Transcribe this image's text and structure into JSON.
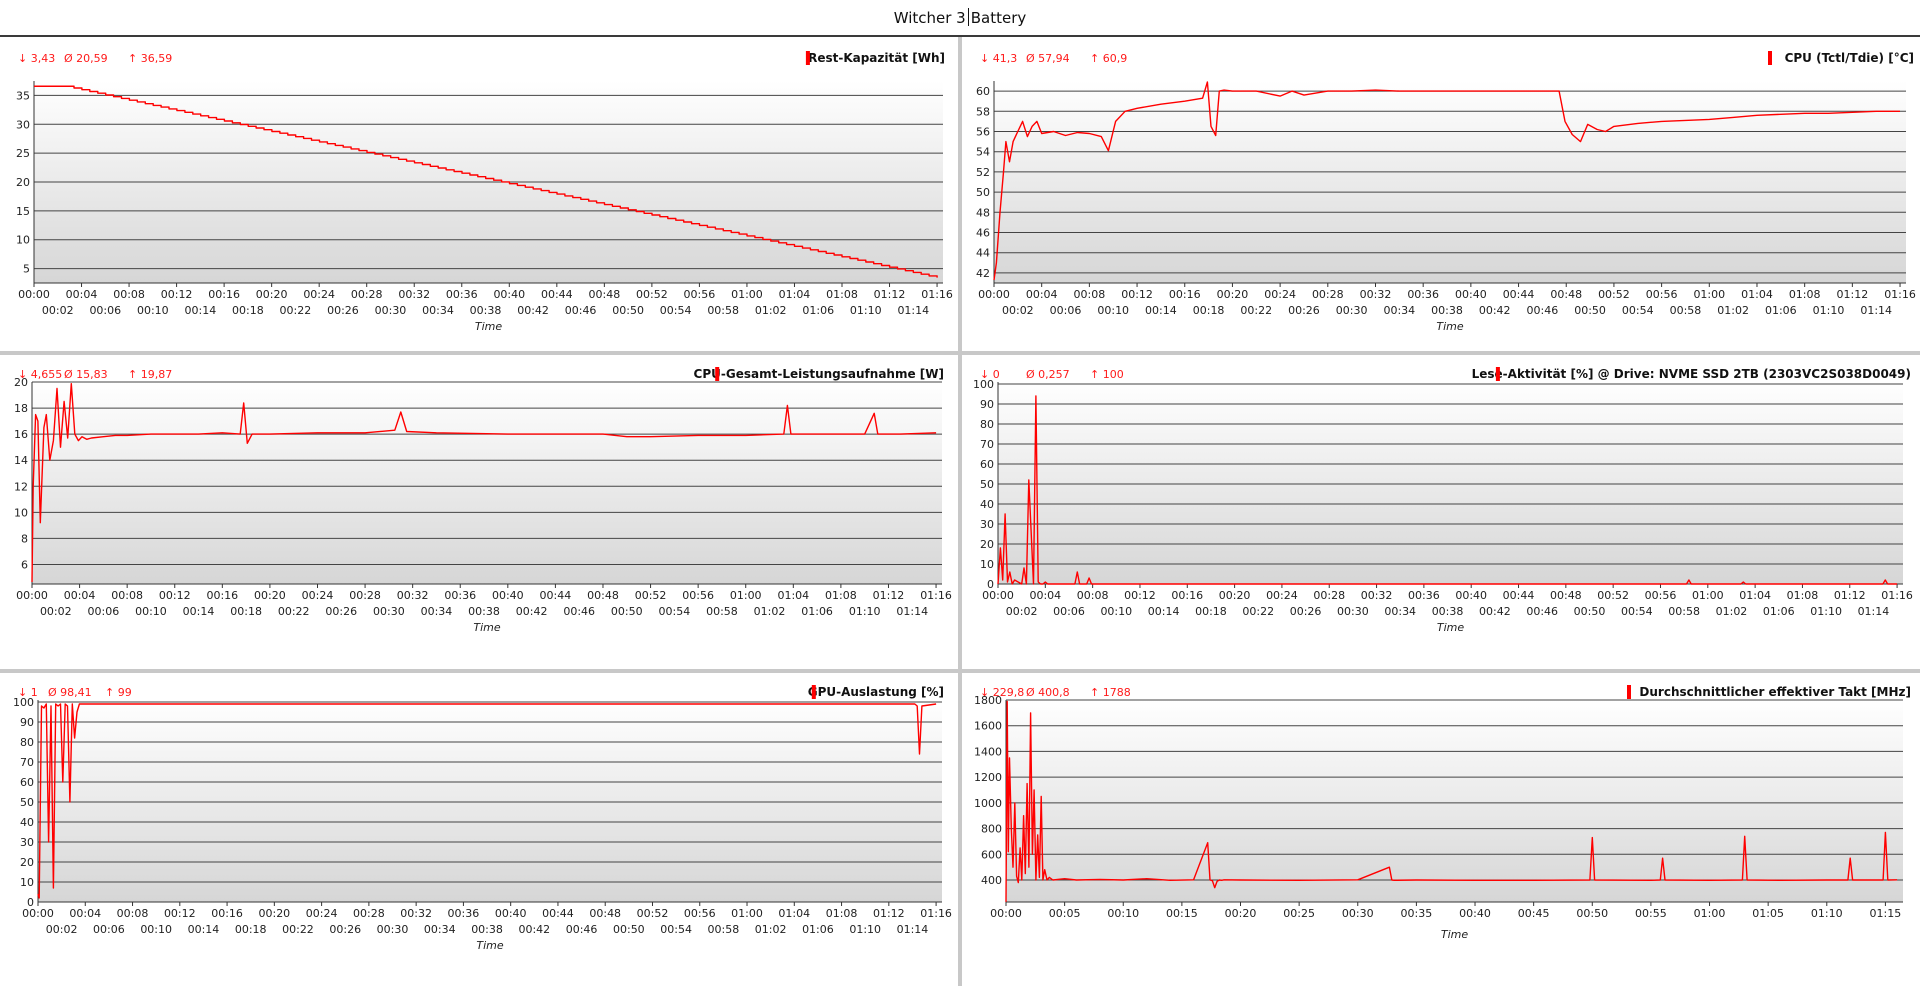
{
  "window": {
    "title_left": "Witcher 3",
    "title_right": "Battery"
  },
  "colors": {
    "series": "#ff0000",
    "panel_divider": "#c8c8c8"
  },
  "stat_icons": {
    "min": "arrow-down-icon",
    "avg": "average-icon",
    "max": "arrow-up-icon"
  },
  "chart_data": [
    {
      "id": "p1",
      "type": "line",
      "title": "Rest-Kapazität [Wh]",
      "stats": {
        "min_label": "↓ 3,43",
        "avg_label": "Ø 20,59",
        "max_label": "↑ 36,59"
      },
      "xlabel": "Time",
      "xlim": [
        0,
        76.5
      ],
      "xticks_top": [
        "00:00",
        "00:04",
        "00:08",
        "00:12",
        "00:16",
        "00:20",
        "00:24",
        "00:28",
        "00:32",
        "00:36",
        "00:40",
        "00:44",
        "00:48",
        "00:52",
        "00:56",
        "01:00",
        "01:04",
        "01:08",
        "01:12",
        "01:16"
      ],
      "xticks_bottom": [
        "00:02",
        "00:06",
        "00:10",
        "00:14",
        "00:18",
        "00:22",
        "00:26",
        "00:30",
        "00:34",
        "00:38",
        "00:42",
        "00:46",
        "00:50",
        "00:54",
        "00:58",
        "01:02",
        "01:06",
        "01:10",
        "01:14"
      ],
      "ylim": [
        2.5,
        37.5
      ],
      "yticks": [
        5,
        10,
        15,
        20,
        25,
        30,
        35
      ],
      "ytick_labels": [
        "5",
        "10",
        "15",
        "20",
        "25",
        "30",
        "35"
      ],
      "x": [
        0,
        2.7,
        76
      ],
      "y": [
        36.59,
        36.59,
        3.43
      ],
      "shape": "step-down"
    },
    {
      "id": "p2",
      "type": "line",
      "title": "CPU (Tctl/Tdie) [°C]",
      "stats": {
        "min_label": "↓ 41,3",
        "avg_label": "Ø 57,94",
        "max_label": "↑ 60,9"
      },
      "xlabel": "Time",
      "xlim": [
        0,
        76.5
      ],
      "xticks_top": [
        "00:00",
        "00:04",
        "00:08",
        "00:12",
        "00:16",
        "00:20",
        "00:24",
        "00:28",
        "00:32",
        "00:36",
        "00:40",
        "00:44",
        "00:48",
        "00:52",
        "00:56",
        "01:00",
        "01:04",
        "01:08",
        "01:12",
        "01:16"
      ],
      "xticks_bottom": [
        "00:02",
        "00:06",
        "00:10",
        "00:14",
        "00:18",
        "00:22",
        "00:26",
        "00:30",
        "00:34",
        "00:38",
        "00:42",
        "00:46",
        "00:50",
        "00:54",
        "00:58",
        "01:02",
        "01:06",
        "01:10",
        "01:14"
      ],
      "ylim": [
        41,
        61
      ],
      "yticks": [
        42,
        44,
        46,
        48,
        50,
        52,
        54,
        56,
        58,
        60
      ],
      "ytick_labels": [
        "42",
        "44",
        "46",
        "48",
        "50",
        "52",
        "54",
        "56",
        "58",
        "60"
      ],
      "x": [
        0,
        0.2,
        0.5,
        0.8,
        1,
        1.3,
        1.6,
        2,
        2.4,
        2.8,
        3.2,
        3.6,
        4,
        5,
        6,
        7,
        8,
        9,
        9.6,
        10.2,
        11,
        12,
        14,
        16,
        17.5,
        17.9,
        18.2,
        18.6,
        18.9,
        19.3,
        20,
        22,
        24,
        25,
        26,
        27,
        28,
        30,
        32,
        34,
        36,
        40,
        44,
        47.4,
        47.9,
        48.5,
        49.2,
        49.8,
        50.6,
        51.3,
        52,
        54,
        56,
        58,
        60,
        62,
        64,
        66,
        68,
        70,
        72,
        74,
        76
      ],
      "y": [
        41.3,
        43,
        48,
        52,
        55,
        53,
        55,
        56,
        57,
        55.5,
        56.5,
        57,
        55.8,
        56,
        55.6,
        55.9,
        55.8,
        55.5,
        54.1,
        57,
        58,
        58.3,
        58.7,
        59,
        59.3,
        60.9,
        56.5,
        55.6,
        60,
        60.1,
        60,
        60,
        59.5,
        60,
        59.6,
        59.8,
        60,
        60,
        60.1,
        60,
        60,
        60,
        60,
        60,
        57,
        55.7,
        55,
        56.7,
        56.2,
        56,
        56.5,
        56.8,
        57,
        57.1,
        57.2,
        57.4,
        57.6,
        57.7,
        57.8,
        57.8,
        57.9,
        58,
        58
      ]
    },
    {
      "id": "p3",
      "type": "line",
      "title": "CPU-Gesamt-Leistungsaufnahme [W]",
      "stats": {
        "min_label": "↓ 4,655",
        "avg_label": "Ø 15,83",
        "max_label": "↑ 19,87"
      },
      "xlabel": "Time",
      "xlim": [
        0,
        76.5
      ],
      "xticks_top": [
        "00:00",
        "00:04",
        "00:08",
        "00:12",
        "00:16",
        "00:20",
        "00:24",
        "00:28",
        "00:32",
        "00:36",
        "00:40",
        "00:44",
        "00:48",
        "00:52",
        "00:56",
        "01:00",
        "01:04",
        "01:08",
        "01:12",
        "01:16"
      ],
      "xticks_bottom": [
        "00:02",
        "00:06",
        "00:10",
        "00:14",
        "00:18",
        "00:22",
        "00:26",
        "00:30",
        "00:34",
        "00:38",
        "00:42",
        "00:46",
        "00:50",
        "00:54",
        "00:58",
        "01:02",
        "01:06",
        "01:10",
        "01:14"
      ],
      "ylim": [
        4.5,
        20
      ],
      "yticks": [
        6,
        8,
        10,
        12,
        14,
        16,
        18,
        20
      ],
      "ytick_labels": [
        "6",
        "8",
        "10",
        "12",
        "14",
        "16",
        "18",
        "20"
      ],
      "x": [
        0,
        0.1,
        0.3,
        0.5,
        0.7,
        1,
        1.2,
        1.5,
        1.8,
        2.1,
        2.4,
        2.7,
        3,
        3.3,
        3.6,
        3.9,
        4.2,
        4.6,
        5,
        6,
        7,
        8,
        10,
        12,
        14,
        16,
        17.5,
        17.8,
        18.1,
        18.5,
        20,
        24,
        28,
        30.5,
        31,
        31.5,
        34,
        40,
        44,
        48,
        50,
        52,
        56,
        60,
        63.2,
        63.5,
        63.8,
        66,
        70,
        70.8,
        71.1,
        71.4,
        73,
        76
      ],
      "y": [
        4.655,
        12,
        17.5,
        17,
        9.2,
        16.5,
        17.5,
        14,
        15.5,
        19.5,
        15,
        18.5,
        15.7,
        19.87,
        16,
        15.5,
        15.8,
        15.6,
        15.7,
        15.8,
        15.9,
        15.9,
        16,
        16,
        16,
        16.1,
        16,
        18.4,
        15.3,
        16,
        16,
        16.1,
        16.1,
        16.3,
        17.7,
        16.2,
        16.1,
        16,
        16,
        16,
        15.8,
        15.8,
        15.9,
        15.9,
        16,
        18.2,
        16,
        16,
        16,
        17.6,
        16,
        16,
        16,
        16.1
      ]
    },
    {
      "id": "p4",
      "type": "line",
      "title": "Lese-Aktivität [%] @ Drive: NVME SSD 2TB (2303VC2S038D0049)",
      "stats": {
        "min_label": "↓ 0",
        "avg_label": "Ø 0,257",
        "max_label": "↑ 100"
      },
      "xlabel": "Time",
      "xlim": [
        0,
        76.5
      ],
      "xticks_top": [
        "00:00",
        "00:04",
        "00:08",
        "00:12",
        "00:16",
        "00:20",
        "00:24",
        "00:28",
        "00:32",
        "00:36",
        "00:40",
        "00:44",
        "00:48",
        "00:52",
        "00:56",
        "01:00",
        "01:04",
        "01:08",
        "01:12",
        "01:16"
      ],
      "xticks_bottom": [
        "00:02",
        "00:06",
        "00:10",
        "00:14",
        "00:18",
        "00:22",
        "00:26",
        "00:30",
        "00:34",
        "00:38",
        "00:42",
        "00:46",
        "00:50",
        "00:54",
        "00:58",
        "01:02",
        "01:06",
        "01:10",
        "01:14"
      ],
      "ylim": [
        0,
        101
      ],
      "yticks": [
        0,
        10,
        20,
        30,
        40,
        50,
        60,
        70,
        80,
        90,
        100
      ],
      "ytick_labels": [
        "0",
        "10",
        "20",
        "30",
        "40",
        "50",
        "60",
        "70",
        "80",
        "90",
        "100"
      ],
      "x": [
        0,
        0.2,
        0.4,
        0.6,
        0.8,
        1,
        1.2,
        1.4,
        2,
        2.2,
        2.4,
        2.6,
        3,
        3.2,
        3.4,
        3.6,
        3.8,
        4,
        4.2,
        5,
        6.5,
        6.7,
        6.9,
        7.5,
        7.7,
        7.9,
        10,
        20,
        30,
        40,
        50,
        58.2,
        58.4,
        58.6,
        60,
        62.8,
        63,
        63.2,
        70,
        74.8,
        75,
        75.2,
        76
      ],
      "y": [
        0,
        18,
        2,
        35,
        1,
        6,
        0,
        2,
        0,
        8,
        0,
        52,
        0,
        94,
        1,
        0,
        0,
        1,
        0,
        0,
        0,
        6,
        0,
        0,
        3,
        0,
        0,
        0,
        0,
        0,
        0,
        0,
        2,
        0,
        0,
        0,
        1,
        0,
        0,
        0,
        2,
        0,
        0
      ]
    },
    {
      "id": "p5",
      "type": "line",
      "title": "GPU-Auslastung [%]",
      "stats": {
        "min_label": "↓ 1",
        "avg_label": "Ø 98,41",
        "max_label": "↑ 99"
      },
      "xlabel": "Time",
      "xlim": [
        0,
        76.5
      ],
      "xticks_top": [
        "00:00",
        "00:04",
        "00:08",
        "00:12",
        "00:16",
        "00:20",
        "00:24",
        "00:28",
        "00:32",
        "00:36",
        "00:40",
        "00:44",
        "00:48",
        "00:52",
        "00:56",
        "01:00",
        "01:04",
        "01:08",
        "01:12",
        "01:16"
      ],
      "xticks_bottom": [
        "00:02",
        "00:06",
        "00:10",
        "00:14",
        "00:18",
        "00:22",
        "00:26",
        "00:30",
        "00:34",
        "00:38",
        "00:42",
        "00:46",
        "00:50",
        "00:54",
        "00:58",
        "01:02",
        "01:06",
        "01:10",
        "01:14"
      ],
      "ylim": [
        0,
        101
      ],
      "yticks": [
        0,
        10,
        20,
        30,
        40,
        50,
        60,
        70,
        80,
        90,
        100
      ],
      "ytick_labels": [
        "0",
        "10",
        "20",
        "30",
        "40",
        "50",
        "60",
        "70",
        "80",
        "90",
        "100"
      ],
      "x": [
        0,
        0.1,
        0.3,
        0.5,
        0.7,
        0.9,
        1.1,
        1.3,
        1.5,
        1.7,
        1.9,
        2.1,
        2.3,
        2.5,
        2.7,
        2.9,
        3.1,
        3.3,
        3.5,
        3.7,
        4,
        6,
        10,
        20,
        30,
        40,
        50,
        60,
        70,
        74.2,
        74.4,
        74.6,
        74.8,
        76
      ],
      "y": [
        4,
        2,
        98,
        97,
        99,
        30,
        98,
        7,
        99,
        98,
        99,
        60,
        99,
        98,
        50,
        99,
        82,
        95,
        99,
        99,
        99,
        99,
        99,
        99,
        99,
        99,
        99,
        99,
        99,
        99,
        98,
        74,
        98,
        99
      ]
    },
    {
      "id": "p6",
      "type": "line",
      "title": "Durchschnittlicher effektiver Takt [MHz]",
      "stats": {
        "min_label": "↓ 229,8",
        "avg_label": "Ø 400,8",
        "max_label": "↑ 1788"
      },
      "xlabel": "Time",
      "xlim": [
        0,
        76.5
      ],
      "xticks_top": [
        "00:00",
        "00:05",
        "00:10",
        "00:15",
        "00:20",
        "00:25",
        "00:30",
        "00:35",
        "00:40",
        "00:45",
        "00:50",
        "00:55",
        "01:00",
        "01:05",
        "01:10",
        "01:15"
      ],
      "xticks_bottom": [],
      "ylim": [
        229,
        1800
      ],
      "yticks": [
        400,
        600,
        800,
        1000,
        1200,
        1400,
        1600,
        1800
      ],
      "ytick_labels": [
        "400",
        "600",
        "800",
        "1000",
        "1200",
        "1400",
        "1600",
        "1800"
      ],
      "x": [
        0,
        0.1,
        0.2,
        0.3,
        0.45,
        0.6,
        0.75,
        0.9,
        1.05,
        1.2,
        1.35,
        1.5,
        1.65,
        1.8,
        1.95,
        2.1,
        2.25,
        2.4,
        2.55,
        2.7,
        2.85,
        3,
        3.15,
        3.3,
        3.5,
        3.7,
        4,
        5,
        6,
        8,
        10,
        12,
        14,
        16,
        17.2,
        17.4,
        17.6,
        17.8,
        18,
        18.2,
        18.4,
        18.6,
        20,
        25,
        30,
        32.7,
        32.9,
        33.1,
        35,
        40,
        45,
        49.8,
        50,
        50.2,
        55,
        55.8,
        56,
        56.2,
        60,
        62.8,
        63,
        63.2,
        66,
        70,
        71.8,
        72,
        72.2,
        74.8,
        75,
        75.2,
        76
      ],
      "y": [
        229.8,
        1788,
        620,
        1350,
        800,
        500,
        1000,
        430,
        380,
        650,
        400,
        900,
        450,
        1150,
        500,
        1700,
        600,
        1100,
        400,
        750,
        420,
        1050,
        400,
        480,
        400,
        420,
        400,
        410,
        400,
        405,
        400,
        410,
        398,
        402,
        690,
        400,
        395,
        340,
        390,
        400,
        398,
        402,
        400,
        398,
        402,
        500,
        400,
        398,
        400,
        398,
        398,
        400,
        730,
        400,
        398,
        400,
        570,
        400,
        398,
        400,
        740,
        400,
        398,
        400,
        400,
        570,
        400,
        400,
        770,
        400,
        402
      ]
    }
  ]
}
